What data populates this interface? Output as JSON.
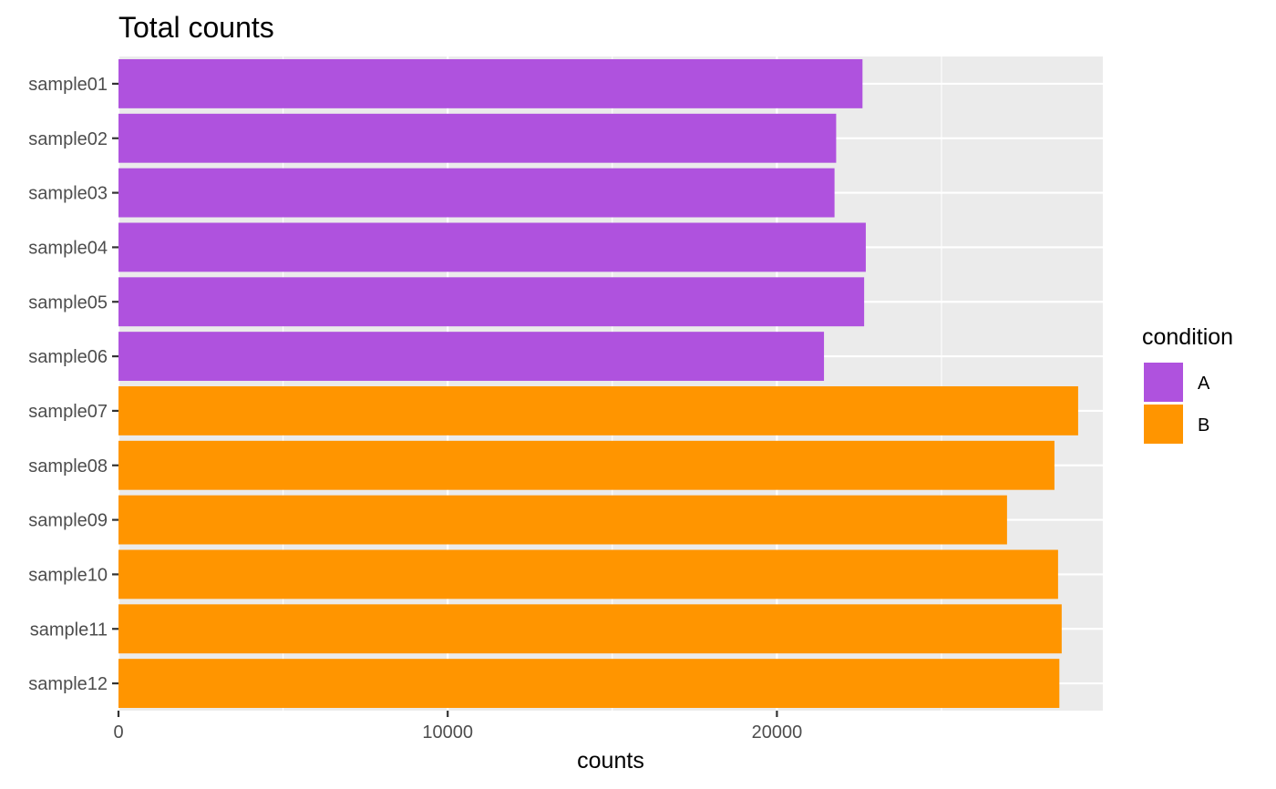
{
  "chart_data": {
    "type": "bar",
    "orientation": "horizontal",
    "title": "Total counts",
    "xlabel": "counts",
    "ylabel": "",
    "xlim": [
      0,
      29900
    ],
    "x_ticks": [
      0,
      10000,
      20000
    ],
    "x_tick_labels": [
      "0",
      "10000",
      "20000"
    ],
    "grid": true,
    "categories": [
      "sample01",
      "sample02",
      "sample03",
      "sample04",
      "sample05",
      "sample06",
      "sample07",
      "sample08",
      "sample09",
      "sample10",
      "sample11",
      "sample12"
    ],
    "values": [
      22600,
      21800,
      21750,
      22700,
      22650,
      21430,
      29150,
      28430,
      26990,
      28540,
      28650,
      28580
    ],
    "groups": [
      "A",
      "A",
      "A",
      "A",
      "A",
      "A",
      "B",
      "B",
      "B",
      "B",
      "B",
      "B"
    ],
    "legend": {
      "title": "condition",
      "position": "right",
      "entries": [
        {
          "label": "A",
          "color": "#AF52DE"
        },
        {
          "label": "B",
          "color": "#FF9500"
        }
      ]
    }
  },
  "colors": {
    "panel_background": "#EBEBEB",
    "grid_line": "#FFFFFF",
    "tick_color": "#333333"
  }
}
